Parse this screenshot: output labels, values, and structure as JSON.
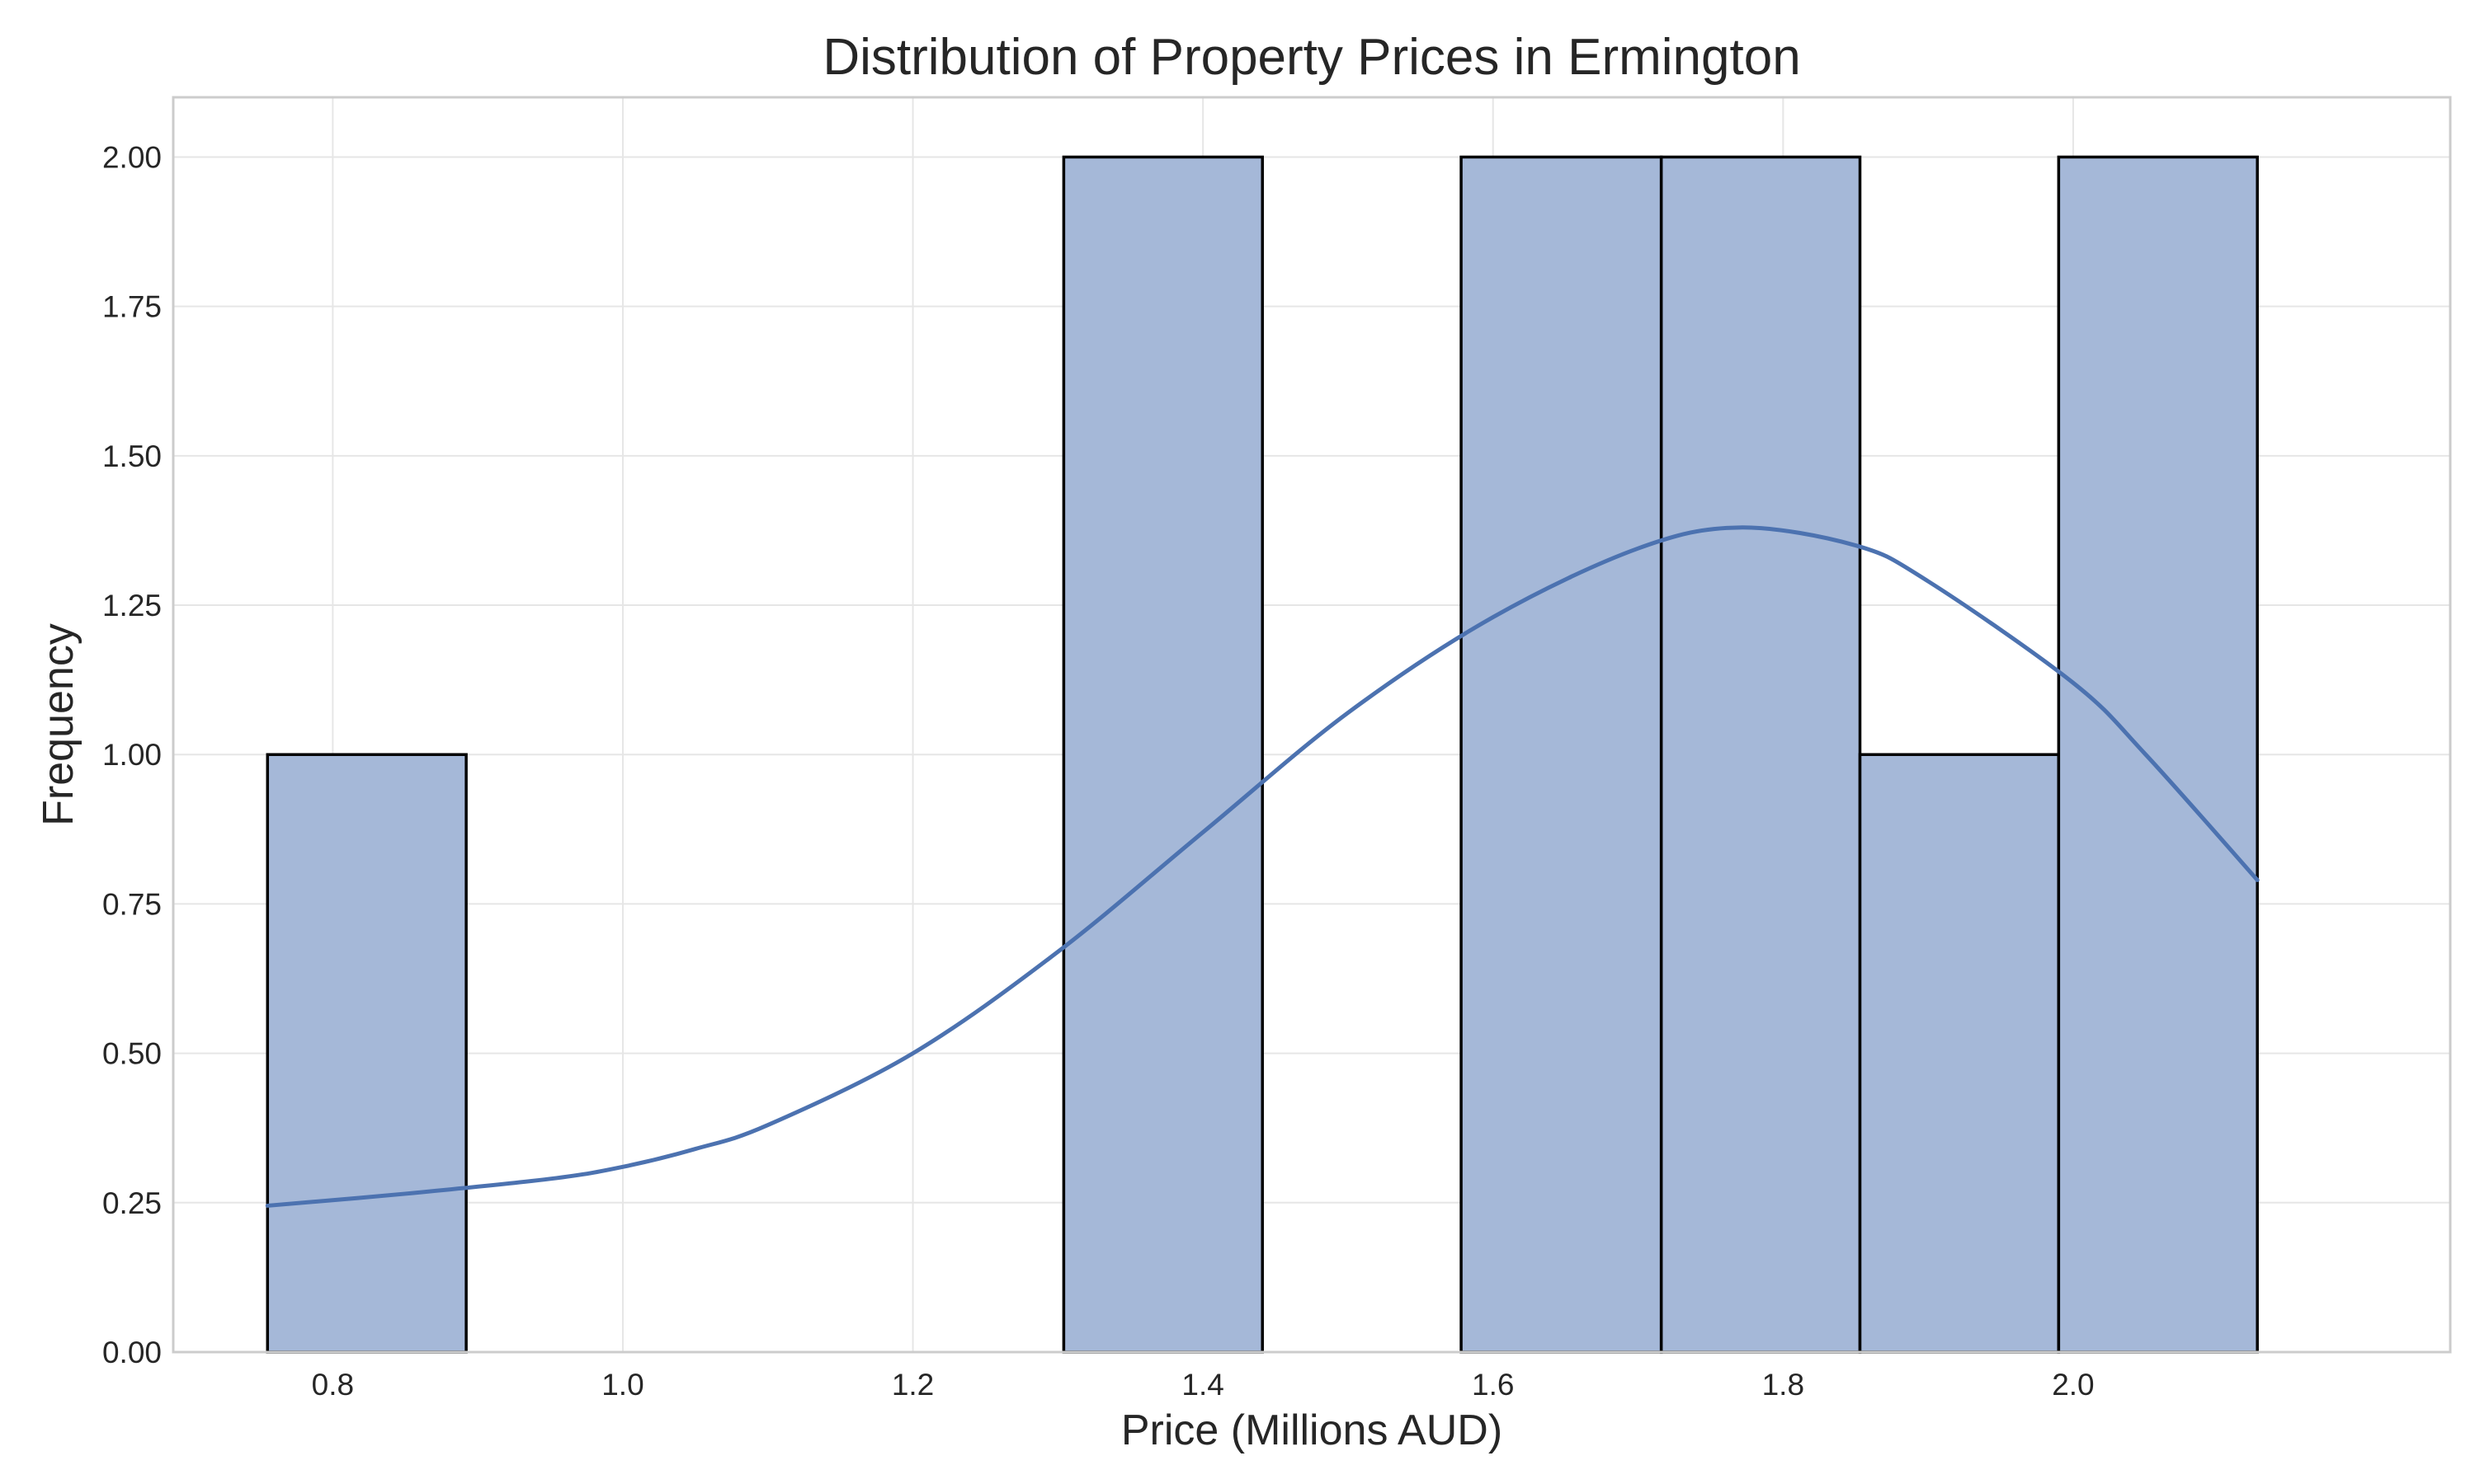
{
  "chart_data": {
    "type": "bar",
    "subtype": "histogram",
    "title": "Distribution of Property Prices in Ermington",
    "xlabel": "Price (Millions AUD)",
    "ylabel": "Frequency",
    "xlim": [
      0.69,
      2.26
    ],
    "ylim": [
      0,
      2.1
    ],
    "xticks": [
      0.8,
      1.0,
      1.2,
      1.4,
      1.6,
      1.8,
      2.0
    ],
    "xtick_labels": [
      "0.8",
      "1.0",
      "1.2",
      "1.4",
      "1.6",
      "1.8",
      "2.0"
    ],
    "yticks": [
      0,
      0.25,
      0.5,
      0.75,
      1.0,
      1.25,
      1.5,
      1.75,
      2.0
    ],
    "ytick_labels": [
      "0.00",
      "0.25",
      "0.50",
      "0.75",
      "1.00",
      "1.25",
      "1.50",
      "1.75",
      "2.00"
    ],
    "grid": true,
    "bins": [
      {
        "start": 0.755,
        "end": 0.892,
        "count": 1
      },
      {
        "start": 0.892,
        "end": 1.029,
        "count": 0
      },
      {
        "start": 1.029,
        "end": 1.167,
        "count": 0
      },
      {
        "start": 1.167,
        "end": 1.304,
        "count": 0
      },
      {
        "start": 1.304,
        "end": 1.441,
        "count": 2
      },
      {
        "start": 1.441,
        "end": 1.578,
        "count": 0
      },
      {
        "start": 1.578,
        "end": 1.716,
        "count": 2
      },
      {
        "start": 1.716,
        "end": 1.853,
        "count": 2
      },
      {
        "start": 1.853,
        "end": 1.99,
        "count": 1
      },
      {
        "start": 1.99,
        "end": 2.127,
        "count": 2
      }
    ],
    "kde": {
      "x": [
        0.755,
        0.85,
        0.95,
        1.0,
        1.05,
        1.1,
        1.2,
        1.3,
        1.4,
        1.5,
        1.6,
        1.7,
        1.77,
        1.85,
        1.9,
        2.0,
        2.05,
        2.127
      ],
      "y": [
        0.245,
        0.265,
        0.29,
        0.31,
        0.34,
        0.38,
        0.5,
        0.67,
        0.87,
        1.07,
        1.23,
        1.345,
        1.38,
        1.35,
        1.29,
        1.12,
        1.0,
        0.79
      ]
    },
    "colors": {
      "bar_fill": "#a5b8d8",
      "bar_edge": "#000000",
      "kde_line": "#4c72b0",
      "grid": "#e6e6e6",
      "frame": "#cccccc",
      "text": "#262626"
    }
  }
}
